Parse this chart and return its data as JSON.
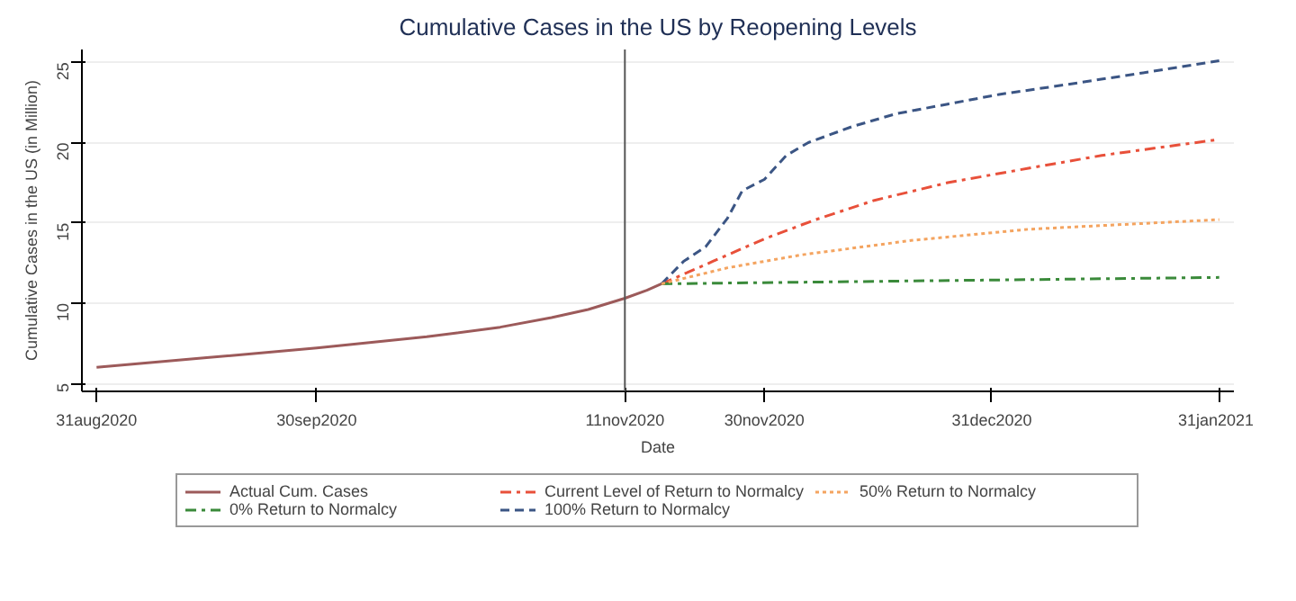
{
  "chart_data": {
    "type": "line",
    "title": "Cumulative Cases in the US by Reopening Levels",
    "xlabel": "Date",
    "ylabel": "Cumulative Cases in the US (in Million)",
    "xlim": [
      "2020-08-29",
      "2021-02-02"
    ],
    "ylim": [
      4.5,
      25.8
    ],
    "xticks": [
      {
        "value": "2020-08-31",
        "label": "31aug2020"
      },
      {
        "value": "2020-09-30",
        "label": "30sep2020"
      },
      {
        "value": "2020-11-11",
        "label": "11nov2020"
      },
      {
        "value": "2020-11-30",
        "label": "30nov2020"
      },
      {
        "value": "2020-12-31",
        "label": "31dec2020"
      },
      {
        "value": "2021-01-31",
        "label": "31jan2021"
      }
    ],
    "yticks": [
      5,
      10,
      15,
      20,
      25
    ],
    "grid": "y",
    "legend": "bottom",
    "ref_lines": [
      {
        "axis": "x",
        "value": "2020-11-11",
        "color": "#555555",
        "line_style": "solid"
      }
    ],
    "series": [
      {
        "name": "Actual Cum. Cases",
        "color": "#9c5a5a",
        "line_style": "solid",
        "x": [
          "2020-08-31",
          "2020-09-15",
          "2020-09-30",
          "2020-10-15",
          "2020-10-25",
          "2020-11-01",
          "2020-11-06",
          "2020-11-11",
          "2020-11-14",
          "2020-11-16"
        ],
        "values": [
          6.0,
          6.6,
          7.2,
          7.9,
          8.5,
          9.1,
          9.6,
          10.3,
          10.8,
          11.2
        ]
      },
      {
        "name": "Current Level of Return to Normalcy",
        "color": "#e8503a",
        "line_style": "dashdot",
        "x": [
          "2020-11-16",
          "2020-11-23",
          "2020-11-30",
          "2020-12-07",
          "2020-12-15",
          "2020-12-25",
          "2021-01-05",
          "2021-01-15",
          "2021-01-31"
        ],
        "values": [
          11.2,
          12.6,
          14.0,
          15.2,
          16.4,
          17.5,
          18.4,
          19.2,
          20.2
        ]
      },
      {
        "name": "50% Return to Normalcy",
        "color": "#f4a460",
        "line_style": "dotted",
        "x": [
          "2020-11-16",
          "2020-11-25",
          "2020-12-05",
          "2020-12-20",
          "2021-01-05",
          "2021-01-31"
        ],
        "values": [
          11.2,
          12.2,
          13.0,
          13.9,
          14.6,
          15.2
        ]
      },
      {
        "name": "0% Return to Normalcy",
        "color": "#3a8a3a",
        "line_style": "dashdot",
        "x": [
          "2020-11-16",
          "2021-01-31"
        ],
        "values": [
          11.2,
          11.6
        ]
      },
      {
        "name": "100% Return to Normalcy",
        "color": "#3b5584",
        "line_style": "dashed",
        "x": [
          "2020-11-16",
          "2020-11-19",
          "2020-11-22",
          "2020-11-25",
          "2020-11-27",
          "2020-11-30",
          "2020-12-03",
          "2020-12-06",
          "2020-12-12",
          "2020-12-18",
          "2020-12-25",
          "2021-01-01",
          "2021-01-10",
          "2021-01-20",
          "2021-01-31"
        ],
        "values": [
          11.2,
          12.6,
          13.5,
          15.3,
          17.0,
          17.7,
          19.2,
          20.0,
          21.0,
          21.8,
          22.4,
          23.0,
          23.6,
          24.3,
          25.1
        ]
      }
    ]
  }
}
